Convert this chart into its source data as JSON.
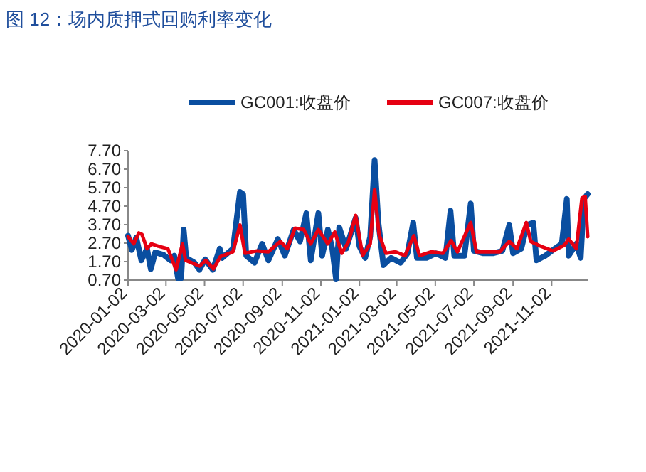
{
  "chart_data": {
    "type": "line",
    "title": "图 12：场内质押式回购利率变化",
    "xlim": [
      "2020-01-02",
      "2021-12-29"
    ],
    "xticks": [
      "2020-01-02",
      "2020-03-02",
      "2020-05-02",
      "2020-07-02",
      "2020-09-02",
      "2020-11-02",
      "2021-01-02",
      "2021-03-02",
      "2021-05-02",
      "2021-07-02",
      "2021-09-02",
      "2021-11-02"
    ],
    "ylim": [
      0.7,
      7.7
    ],
    "yticks": [
      {
        "value": 0.7,
        "label": "0.70"
      },
      {
        "value": 1.7,
        "label": "1.70"
      },
      {
        "value": 2.7,
        "label": "2.70"
      },
      {
        "value": 3.7,
        "label": "3.70"
      },
      {
        "value": 4.7,
        "label": "4.70"
      },
      {
        "value": 5.7,
        "label": "5.70"
      },
      {
        "value": 6.7,
        "label": "6.70"
      },
      {
        "value": 7.7,
        "label": "7.70"
      }
    ],
    "legend": "top",
    "grid": false,
    "series": [
      {
        "name": "GC001:收盘价",
        "color": "#0a4ea0",
        "x": [
          "2020-01-02",
          "2020-01-08",
          "2020-01-15",
          "2020-01-23",
          "2020-02-01",
          "2020-02-07",
          "2020-02-14",
          "2020-02-27",
          "2020-03-09",
          "2020-03-15",
          "2020-03-21",
          "2020-03-26",
          "2020-03-30",
          "2020-04-03",
          "2020-04-16",
          "2020-04-24",
          "2020-05-03",
          "2020-05-15",
          "2020-05-26",
          "2020-05-30",
          "2020-06-16",
          "2020-06-27",
          "2020-07-02",
          "2020-07-07",
          "2020-07-20",
          "2020-08-01",
          "2020-08-11",
          "2020-08-26",
          "2020-09-06",
          "2020-09-20",
          "2020-09-30",
          "2020-10-10",
          "2020-10-17",
          "2020-10-29",
          "2020-11-04",
          "2020-11-13",
          "2020-11-20",
          "2020-11-26",
          "2020-12-01",
          "2020-12-12",
          "2020-12-27",
          "2021-01-02",
          "2021-01-11",
          "2021-01-19",
          "2021-01-26",
          "2021-02-01",
          "2021-02-09",
          "2021-02-21",
          "2021-03-08",
          "2021-03-19",
          "2021-03-28",
          "2021-04-03",
          "2021-04-18",
          "2021-05-03",
          "2021-05-18",
          "2021-05-26",
          "2021-06-01",
          "2021-06-17",
          "2021-06-27",
          "2021-07-02",
          "2021-07-17",
          "2021-08-01",
          "2021-08-16",
          "2021-08-27",
          "2021-09-02",
          "2021-09-15",
          "2021-09-24",
          "2021-10-04",
          "2021-10-09",
          "2021-10-23",
          "2021-11-07",
          "2021-11-18",
          "2021-11-26",
          "2021-11-29",
          "2021-12-11",
          "2021-12-18",
          "2021-12-23",
          "2021-12-29"
        ],
        "values": [
          3.1,
          2.33,
          3.0,
          1.77,
          2.4,
          1.3,
          2.2,
          2.07,
          1.77,
          2.02,
          0.8,
          0.8,
          3.43,
          1.9,
          1.64,
          1.26,
          1.82,
          1.26,
          2.4,
          1.9,
          2.4,
          5.47,
          5.35,
          2.02,
          1.64,
          2.66,
          1.77,
          2.92,
          2.02,
          3.43,
          2.79,
          4.32,
          1.77,
          4.32,
          2.02,
          3.43,
          2.4,
          0.74,
          3.56,
          2.4,
          4.07,
          2.53,
          1.9,
          3.05,
          7.19,
          3.81,
          1.51,
          1.9,
          1.64,
          2.15,
          3.81,
          1.9,
          1.9,
          2.15,
          1.9,
          4.45,
          2.02,
          2.02,
          4.84,
          2.28,
          2.15,
          2.15,
          2.28,
          3.68,
          2.15,
          2.4,
          3.68,
          3.81,
          1.77,
          2.02,
          2.4,
          2.66,
          5.09,
          2.02,
          2.66,
          1.9,
          5.09,
          5.35
        ]
      },
      {
        "name": "GC007:收盘价",
        "color": "#e60012",
        "x": [
          "2020-01-02",
          "2020-01-11",
          "2020-01-19",
          "2020-01-24",
          "2020-02-01",
          "2020-02-08",
          "2020-02-19",
          "2020-03-05",
          "2020-03-18",
          "2020-03-28",
          "2020-04-02",
          "2020-04-24",
          "2020-05-04",
          "2020-05-16",
          "2020-05-27",
          "2020-06-16",
          "2020-06-27",
          "2020-07-05",
          "2020-07-24",
          "2020-08-11",
          "2020-08-30",
          "2020-09-10",
          "2020-09-22",
          "2020-10-06",
          "2020-10-17",
          "2020-10-29",
          "2020-11-13",
          "2020-11-24",
          "2020-12-05",
          "2020-12-16",
          "2020-12-27",
          "2021-01-07",
          "2021-01-19",
          "2021-01-26",
          "2021-02-02",
          "2021-02-13",
          "2021-02-28",
          "2021-03-15",
          "2021-03-29",
          "2021-04-07",
          "2021-04-26",
          "2021-05-14",
          "2021-05-27",
          "2021-06-06",
          "2021-06-27",
          "2021-07-06",
          "2021-07-24",
          "2021-08-12",
          "2021-08-27",
          "2021-09-08",
          "2021-09-23",
          "2021-09-30",
          "2021-10-16",
          "2021-11-04",
          "2021-11-22",
          "2021-11-29",
          "2021-12-11",
          "2021-12-20",
          "2021-12-25",
          "2021-12-29"
        ],
        "values": [
          3.05,
          2.66,
          3.25,
          3.17,
          2.4,
          2.66,
          2.53,
          2.4,
          1.26,
          2.66,
          1.77,
          1.46,
          1.77,
          1.3,
          1.97,
          2.23,
          3.68,
          2.15,
          2.28,
          2.23,
          2.79,
          2.4,
          3.51,
          3.43,
          2.66,
          3.43,
          2.66,
          3.3,
          2.15,
          2.79,
          4.2,
          2.02,
          2.66,
          5.6,
          3.17,
          2.15,
          2.23,
          2.02,
          3.1,
          2.02,
          2.23,
          2.15,
          2.84,
          2.23,
          3.81,
          2.23,
          2.23,
          2.23,
          2.79,
          2.4,
          3.81,
          2.79,
          2.53,
          2.28,
          2.58,
          2.92,
          2.4,
          5.14,
          5.22,
          3.05
        ]
      }
    ]
  }
}
